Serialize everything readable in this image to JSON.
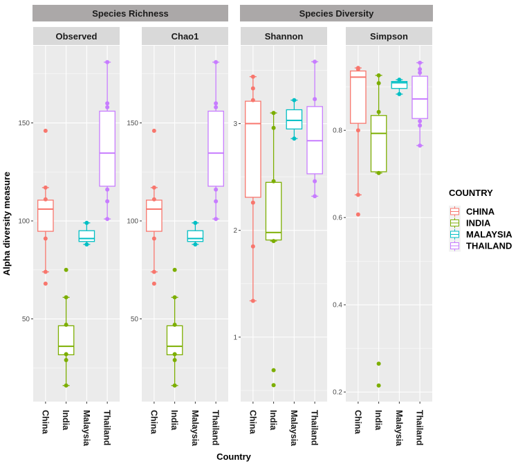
{
  "colors": {
    "China": "#F8766D",
    "India": "#7CAE00",
    "Malaysia": "#00BFC4",
    "Thailand": "#C77CFF"
  },
  "axis": {
    "ylabel": "Alpha diversity measure",
    "xlabel": "Country"
  },
  "groups": [
    {
      "label": "Species Richness"
    },
    {
      "label": "Species Diversity"
    }
  ],
  "legend": {
    "title": "COUNTRY",
    "position": "right",
    "items": [
      {
        "key": "China",
        "label": "CHINA"
      },
      {
        "key": "India",
        "label": "INDIA"
      },
      {
        "key": "Malaysia",
        "label": "MALAYSIA"
      },
      {
        "key": "Thailand",
        "label": "THAILAND"
      }
    ]
  },
  "chart_data": [
    {
      "type": "box",
      "title": "Observed",
      "group": "Species Richness",
      "categories": [
        "China",
        "India",
        "Malaysia",
        "Thailand"
      ],
      "ylim": [
        7.8,
        189.4
      ],
      "yticks": [
        50,
        100,
        150
      ],
      "boxes": [
        {
          "country": "China",
          "lower": 74,
          "q1": 94.7,
          "median": 106,
          "q3": 110.6,
          "upper": 117,
          "points": [
            146,
            117,
            111,
            91,
            74,
            68
          ]
        },
        {
          "country": "India",
          "lower": 16,
          "q1": 31.7,
          "median": 36,
          "q3": 46.5,
          "upper": 61,
          "points": [
            75,
            61,
            47,
            32,
            29,
            16
          ]
        },
        {
          "country": "Malaysia",
          "lower": 88,
          "q1": 89.5,
          "median": 91,
          "q3": 95,
          "upper": 99,
          "points": [
            99,
            88
          ]
        },
        {
          "country": "Thailand",
          "lower": 101,
          "q1": 117.7,
          "median": 134.6,
          "q3": 156,
          "upper": 181,
          "points": [
            181,
            160,
            158,
            116,
            110,
            101
          ]
        }
      ]
    },
    {
      "type": "box",
      "title": "Chao1",
      "group": "Species Richness",
      "categories": [
        "China",
        "India",
        "Malaysia",
        "Thailand"
      ],
      "ylim": [
        7.8,
        189.4
      ],
      "yticks": [
        50,
        100,
        150
      ],
      "boxes": [
        {
          "country": "China",
          "lower": 74,
          "q1": 94.7,
          "median": 106,
          "q3": 110.6,
          "upper": 117,
          "points": [
            146,
            117,
            111,
            91,
            74,
            68
          ]
        },
        {
          "country": "India",
          "lower": 16,
          "q1": 31.7,
          "median": 36,
          "q3": 46.5,
          "upper": 61,
          "points": [
            75,
            61,
            47,
            32,
            29,
            16
          ]
        },
        {
          "country": "Malaysia",
          "lower": 88,
          "q1": 89.5,
          "median": 91,
          "q3": 95,
          "upper": 99,
          "points": [
            99,
            88
          ]
        },
        {
          "country": "Thailand",
          "lower": 101,
          "q1": 117.7,
          "median": 134.6,
          "q3": 156,
          "upper": 181,
          "points": [
            181,
            160,
            158,
            116,
            110,
            101
          ]
        }
      ]
    },
    {
      "type": "box",
      "title": "Shannon",
      "group": "Species Diversity",
      "categories": [
        "China",
        "India",
        "Malaysia",
        "Thailand"
      ],
      "ylim": [
        0.396,
        3.73
      ],
      "yticks": [
        1,
        2,
        3
      ],
      "boxes": [
        {
          "country": "China",
          "lower": 1.34,
          "q1": 2.31,
          "median": 3.0,
          "q3": 3.21,
          "upper": 3.44,
          "points": [
            3.44,
            3.33,
            3.22,
            2.26,
            1.85,
            1.34
          ]
        },
        {
          "country": "India",
          "lower": 1.9,
          "q1": 1.91,
          "median": 1.98,
          "q3": 2.45,
          "upper": 3.1,
          "points": [
            3.1,
            2.96,
            2.46,
            1.9,
            0.69,
            0.55
          ]
        },
        {
          "country": "Malaysia",
          "lower": 2.86,
          "q1": 2.95,
          "median": 3.03,
          "q3": 3.13,
          "upper": 3.22,
          "points": [
            3.22,
            2.86
          ]
        },
        {
          "country": "Thailand",
          "lower": 2.32,
          "q1": 2.53,
          "median": 2.84,
          "q3": 3.16,
          "upper": 3.58,
          "points": [
            3.58,
            3.23,
            2.46,
            2.32
          ]
        }
      ]
    },
    {
      "type": "box",
      "title": "Simpson",
      "group": "Species Diversity",
      "categories": [
        "China",
        "India",
        "Malaysia",
        "Thailand"
      ],
      "ylim": [
        0.178,
        0.994
      ],
      "yticks": [
        0.2,
        0.4,
        0.6,
        0.8
      ],
      "boxes": [
        {
          "country": "China",
          "lower": 0.652,
          "q1": 0.816,
          "median": 0.922,
          "q3": 0.936,
          "upper": 0.943,
          "points": [
            0.943,
            0.94,
            0.8,
            0.652,
            0.607
          ]
        },
        {
          "country": "India",
          "lower": 0.702,
          "q1": 0.705,
          "median": 0.793,
          "q3": 0.834,
          "upper": 0.926,
          "points": [
            0.926,
            0.908,
            0.842,
            0.702,
            0.265,
            0.215
          ]
        },
        {
          "country": "Malaysia",
          "lower": 0.883,
          "q1": 0.896,
          "median": 0.909,
          "q3": 0.912,
          "upper": 0.916,
          "points": [
            0.916,
            0.883
          ]
        },
        {
          "country": "Thailand",
          "lower": 0.765,
          "q1": 0.827,
          "median": 0.872,
          "q3": 0.924,
          "upper": 0.955,
          "points": [
            0.955,
            0.94,
            0.932,
            0.821,
            0.811,
            0.765
          ]
        }
      ]
    }
  ]
}
